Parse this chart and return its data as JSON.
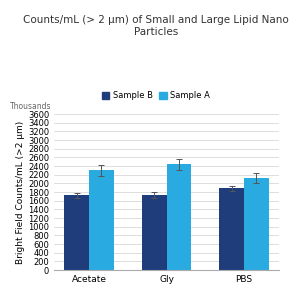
{
  "title": "Counts/mL (> 2 μm) of Small and Large Lipid Nano\nParticles",
  "ylabel": "Bright Field Counts/mL (>2 μm)",
  "ylabel_secondary": "Thousands",
  "categories": [
    "Acetate",
    "Gly",
    "PBS"
  ],
  "sample_b_values": [
    1720,
    1730,
    1890
  ],
  "sample_a_values": [
    2300,
    2440,
    2130
  ],
  "sample_b_errors": [
    60,
    65,
    60
  ],
  "sample_a_errors": [
    120,
    130,
    120
  ],
  "sample_b_color": "#1F3D7A",
  "sample_a_color": "#29ABE2",
  "ylim": [
    0,
    3600
  ],
  "yticks": [
    0,
    200,
    400,
    600,
    800,
    1000,
    1200,
    1400,
    1600,
    1800,
    2000,
    2200,
    2400,
    2600,
    2800,
    3000,
    3200,
    3400,
    3600
  ],
  "legend_labels": [
    "Sample B",
    "Sample A"
  ],
  "bar_width": 0.32,
  "background_color": "#ffffff",
  "title_fontsize": 7.5,
  "axis_fontsize": 6.5,
  "tick_fontsize": 6
}
